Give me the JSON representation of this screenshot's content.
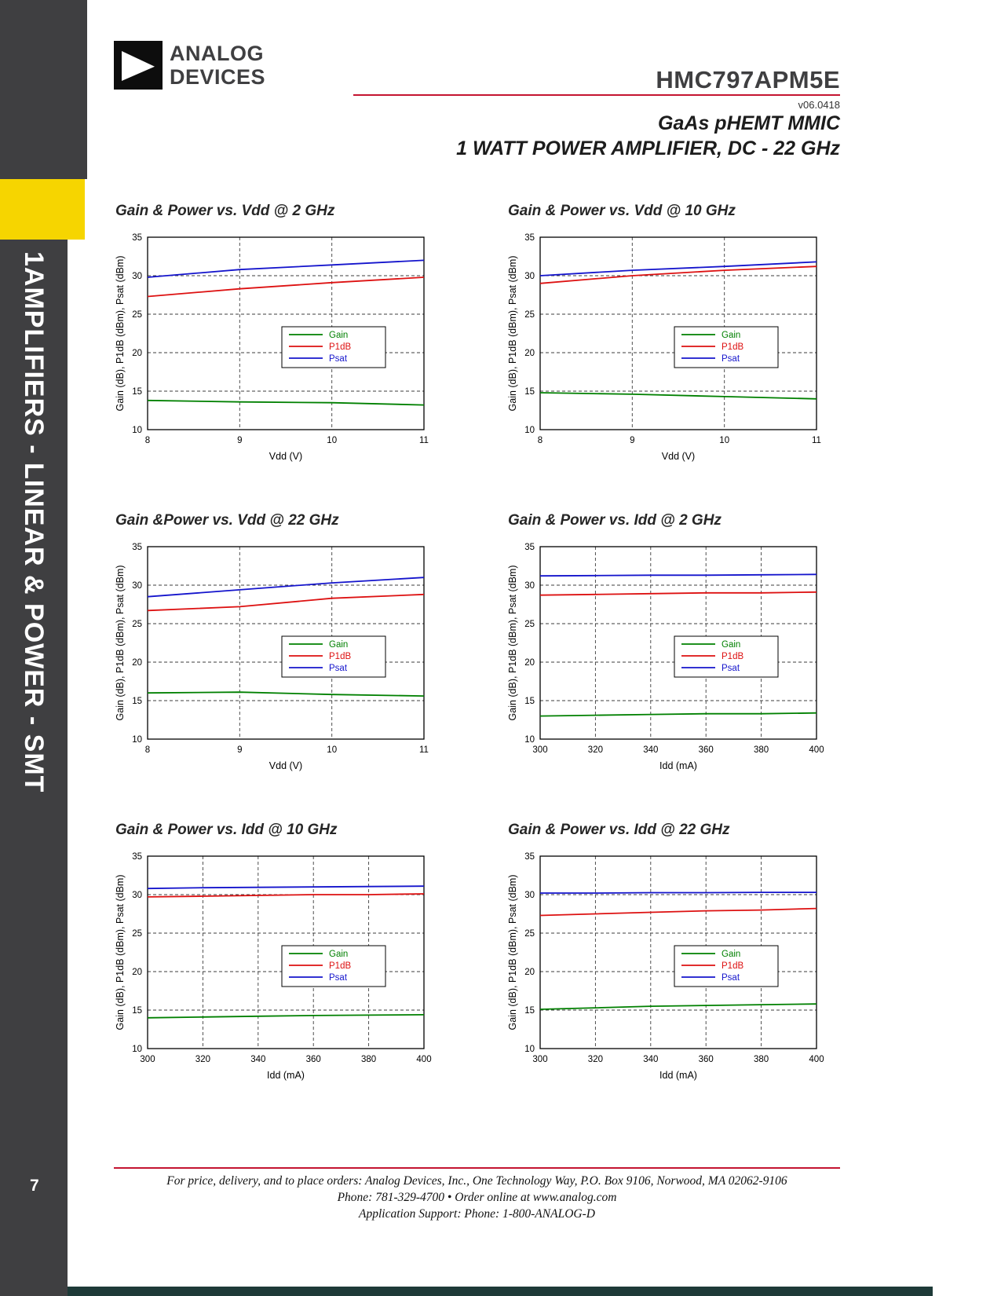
{
  "sidebar": {
    "section_label": "1AMPLIFIERS - LINEAR & POWER - SMT",
    "page_number": "7"
  },
  "header": {
    "logo_line1": "ANALOG",
    "logo_line2": "DEVICES",
    "part_number": "HMC797APM5E",
    "version": "v06.0418",
    "subtitle_line1": "GaAs pHEMT MMIC",
    "subtitle_line2": "1 WATT POWER AMPLIFIER, DC - 22 GHz"
  },
  "footer": {
    "line1": "For price, delivery, and to place orders: Analog Devices, Inc., One Technology Way, P.O. Box 9106, Norwood, MA 02062-9106",
    "line2": "Phone: 781-329-4700 • Order online at www.analog.com",
    "line3": "Application Support: Phone: 1-800-ANALOG-D"
  },
  "colors": {
    "accent_yellow": "#f6d500",
    "rule_red": "#c41431",
    "sidebar_gray": "#3f3f41",
    "gain_green": "#008000",
    "p1db_red": "#dd1111",
    "psat_blue": "#1414cc"
  },
  "chart_data": [
    {
      "type": "line",
      "title": "Gain & Power vs. Vdd @ 2 GHz",
      "xlabel": "Vdd (V)",
      "ylabel": "Gain (dB), P1dB (dBm), Psat (dBm)",
      "xlim": [
        8,
        11
      ],
      "ylim": [
        10,
        35
      ],
      "xticks": [
        8,
        9,
        10,
        11
      ],
      "yticks": [
        10,
        15,
        20,
        25,
        30,
        35
      ],
      "grid": "dashed",
      "legend_position": "center-right",
      "series": [
        {
          "name": "Gain",
          "color": "#008000",
          "x": [
            8,
            9,
            10,
            11
          ],
          "y": [
            13.8,
            13.6,
            13.5,
            13.2
          ]
        },
        {
          "name": "P1dB",
          "color": "#dd1111",
          "x": [
            8,
            9,
            10,
            11
          ],
          "y": [
            27.3,
            28.3,
            29.1,
            29.8
          ]
        },
        {
          "name": "Psat",
          "color": "#1414cc",
          "x": [
            8,
            9,
            10,
            11
          ],
          "y": [
            29.8,
            30.8,
            31.4,
            32.0
          ]
        }
      ]
    },
    {
      "type": "line",
      "title": "Gain & Power vs. Vdd @ 10 GHz",
      "xlabel": "Vdd (V)",
      "ylabel": "Gain (dB), P1dB (dBm), Psat (dBm)",
      "xlim": [
        8,
        11
      ],
      "ylim": [
        10,
        35
      ],
      "xticks": [
        8,
        9,
        10,
        11
      ],
      "yticks": [
        10,
        15,
        20,
        25,
        30,
        35
      ],
      "grid": "dashed",
      "legend_position": "center-right",
      "series": [
        {
          "name": "Gain",
          "color": "#008000",
          "x": [
            8,
            9,
            10,
            11
          ],
          "y": [
            14.8,
            14.6,
            14.3,
            14.0
          ]
        },
        {
          "name": "P1dB",
          "color": "#dd1111",
          "x": [
            8,
            9,
            10,
            11
          ],
          "y": [
            29.0,
            30.0,
            30.7,
            31.2
          ]
        },
        {
          "name": "Psat",
          "color": "#1414cc",
          "x": [
            8,
            9,
            10,
            11
          ],
          "y": [
            30.0,
            30.7,
            31.2,
            31.8
          ]
        }
      ]
    },
    {
      "type": "line",
      "title": "Gain &Power vs. Vdd @ 22 GHz",
      "xlabel": "Vdd (V)",
      "ylabel": "Gain (dB), P1dB (dBm), Psat (dBm)",
      "xlim": [
        8,
        11
      ],
      "ylim": [
        10,
        35
      ],
      "xticks": [
        8,
        9,
        10,
        11
      ],
      "yticks": [
        10,
        15,
        20,
        25,
        30,
        35
      ],
      "grid": "dashed",
      "legend_position": "center-right",
      "series": [
        {
          "name": "Gain",
          "color": "#008000",
          "x": [
            8,
            9,
            10,
            11
          ],
          "y": [
            16.0,
            16.1,
            15.8,
            15.6
          ]
        },
        {
          "name": "P1dB",
          "color": "#dd1111",
          "x": [
            8,
            9,
            10,
            11
          ],
          "y": [
            26.7,
            27.2,
            28.3,
            28.8
          ]
        },
        {
          "name": "Psat",
          "color": "#1414cc",
          "x": [
            8,
            9,
            10,
            11
          ],
          "y": [
            28.5,
            29.4,
            30.3,
            31.0
          ]
        }
      ]
    },
    {
      "type": "line",
      "title": "Gain & Power vs. Idd @ 2 GHz",
      "xlabel": "Idd (mA)",
      "ylabel": "Gain (dB), P1dB (dBm), Psat (dBm)",
      "xlim": [
        300,
        400
      ],
      "ylim": [
        10,
        35
      ],
      "xticks": [
        300,
        320,
        340,
        360,
        380,
        400
      ],
      "yticks": [
        10,
        15,
        20,
        25,
        30,
        35
      ],
      "grid": "dashed",
      "legend_position": "center-right",
      "series": [
        {
          "name": "Gain",
          "color": "#008000",
          "x": [
            300,
            320,
            340,
            360,
            380,
            400
          ],
          "y": [
            13.0,
            13.1,
            13.2,
            13.3,
            13.3,
            13.4
          ]
        },
        {
          "name": "P1dB",
          "color": "#dd1111",
          "x": [
            300,
            320,
            340,
            360,
            380,
            400
          ],
          "y": [
            28.7,
            28.8,
            28.9,
            29.0,
            29.0,
            29.1
          ]
        },
        {
          "name": "Psat",
          "color": "#1414cc",
          "x": [
            300,
            320,
            340,
            360,
            380,
            400
          ],
          "y": [
            31.2,
            31.25,
            31.3,
            31.3,
            31.35,
            31.4
          ]
        }
      ]
    },
    {
      "type": "line",
      "title": "Gain & Power vs. Idd @ 10 GHz",
      "xlabel": "Idd (mA)",
      "ylabel": "Gain (dB), P1dB (dBm), Psat (dBm)",
      "xlim": [
        300,
        400
      ],
      "ylim": [
        10,
        35
      ],
      "xticks": [
        300,
        320,
        340,
        360,
        380,
        400
      ],
      "yticks": [
        10,
        15,
        20,
        25,
        30,
        35
      ],
      "grid": "dashed",
      "legend_position": "center-right",
      "series": [
        {
          "name": "Gain",
          "color": "#008000",
          "x": [
            300,
            320,
            340,
            360,
            380,
            400
          ],
          "y": [
            14.0,
            14.1,
            14.2,
            14.3,
            14.35,
            14.4
          ]
        },
        {
          "name": "P1dB",
          "color": "#dd1111",
          "x": [
            300,
            320,
            340,
            360,
            380,
            400
          ],
          "y": [
            29.7,
            29.8,
            29.9,
            30.0,
            30.0,
            30.1
          ]
        },
        {
          "name": "Psat",
          "color": "#1414cc",
          "x": [
            300,
            320,
            340,
            360,
            380,
            400
          ],
          "y": [
            30.8,
            30.9,
            30.95,
            31.0,
            31.05,
            31.1
          ]
        }
      ]
    },
    {
      "type": "line",
      "title": "Gain & Power vs. Idd @ 22 GHz",
      "xlabel": "Idd (mA)",
      "ylabel": "Gain (dB), P1dB (dBm), Psat (dBm)",
      "xlim": [
        300,
        400
      ],
      "ylim": [
        10,
        35
      ],
      "xticks": [
        300,
        320,
        340,
        360,
        380,
        400
      ],
      "yticks": [
        10,
        15,
        20,
        25,
        30,
        35
      ],
      "grid": "dashed",
      "legend_position": "center-right",
      "series": [
        {
          "name": "Gain",
          "color": "#008000",
          "x": [
            300,
            320,
            340,
            360,
            380,
            400
          ],
          "y": [
            15.1,
            15.3,
            15.5,
            15.6,
            15.7,
            15.8
          ]
        },
        {
          "name": "P1dB",
          "color": "#dd1111",
          "x": [
            300,
            320,
            340,
            360,
            380,
            400
          ],
          "y": [
            27.3,
            27.5,
            27.7,
            27.9,
            28.0,
            28.2
          ]
        },
        {
          "name": "Psat",
          "color": "#1414cc",
          "x": [
            300,
            320,
            340,
            360,
            380,
            400
          ],
          "y": [
            30.2,
            30.2,
            30.25,
            30.25,
            30.3,
            30.3
          ]
        }
      ]
    }
  ]
}
